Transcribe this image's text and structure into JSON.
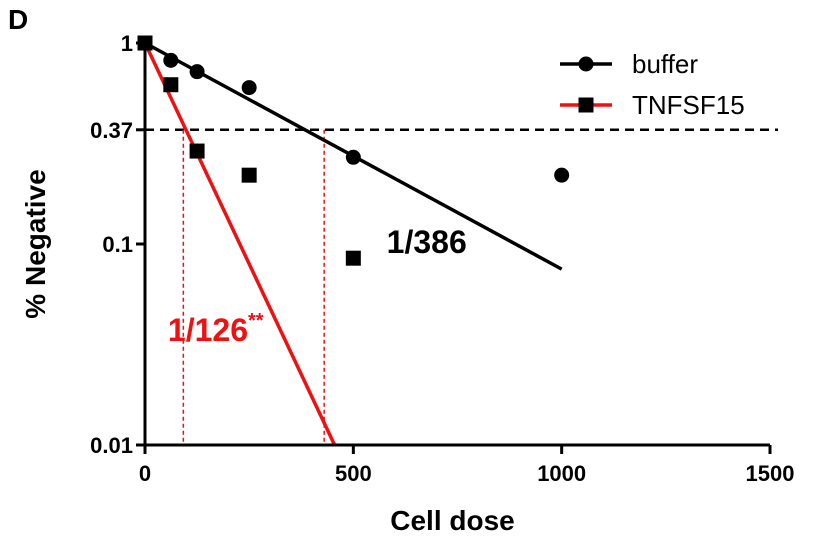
{
  "panel_letter": "D",
  "chart_data": {
    "type": "scatter",
    "xlabel": "Cell dose",
    "ylabel": "% Negative",
    "xlim": [
      0,
      1500
    ],
    "ylim": [
      0.01,
      1
    ],
    "y_scale": "log",
    "x_ticks": [
      0,
      500,
      1000,
      1500
    ],
    "x_tick_labels": [
      "0",
      "500",
      "1000",
      "1500"
    ],
    "y_ticks": [
      0.01,
      0.1,
      0.37,
      1
    ],
    "y_tick_labels": [
      "0.01",
      "0.1",
      "0.37",
      "1"
    ],
    "reference_line": {
      "y": 0.37,
      "style": "dashed",
      "color": "#000000"
    },
    "legend_position": "top-right",
    "series": [
      {
        "name": "buffer",
        "marker": "circle",
        "color": "#000000",
        "x": [
          0,
          62,
          125,
          250,
          500,
          1000
        ],
        "y": [
          1.0,
          0.82,
          0.72,
          0.6,
          0.27,
          0.22
        ],
        "fit_line": {
          "x": [
            0,
            1000
          ],
          "y": [
            1.0,
            0.075
          ]
        },
        "fit_color": "#000000",
        "crossing_x": 430,
        "annotation": {
          "text": "1/386",
          "superscript": "",
          "color": "#000000",
          "x": 580,
          "y": 0.09
        }
      },
      {
        "name": "TNFSF15",
        "marker": "square",
        "color": "#000000",
        "x": [
          0,
          62,
          125,
          250,
          500
        ],
        "y": [
          1.0,
          0.62,
          0.29,
          0.22,
          0.085
        ],
        "fit_line": {
          "x": [
            0,
            455
          ],
          "y": [
            1.0,
            0.01
          ]
        },
        "fit_color": "#ee1111",
        "crossing_x": 92,
        "annotation": {
          "text": "1/126",
          "superscript": "**",
          "color": "#ee1111",
          "x": 55,
          "y": 0.033
        }
      }
    ]
  }
}
